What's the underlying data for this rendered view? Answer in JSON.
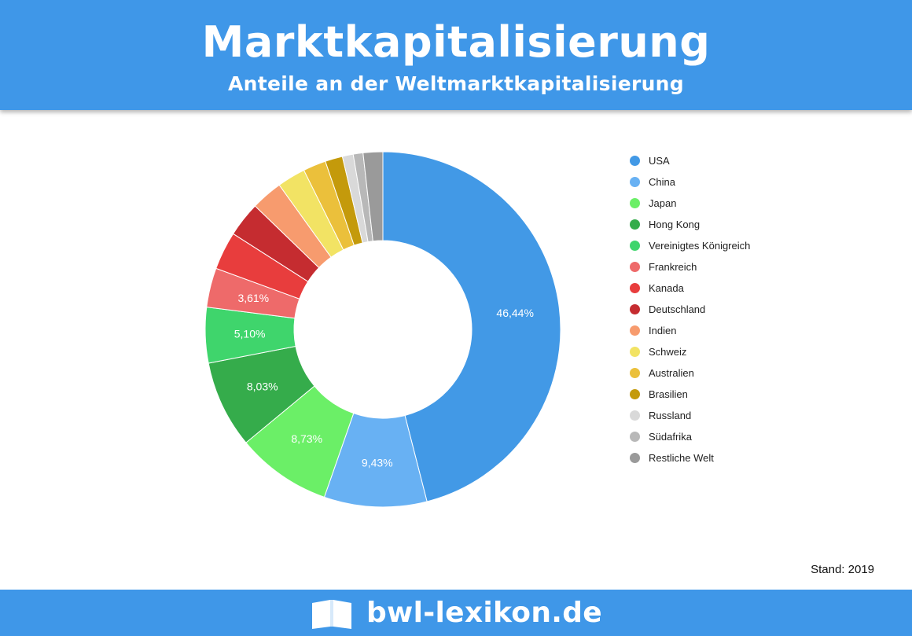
{
  "header": {
    "title": "Marktkapitalisierung",
    "subtitle": "Anteile an der Weltmarktkapitalisierung"
  },
  "chart_data": {
    "type": "pie",
    "variant": "donut",
    "direction": "clockwise from top",
    "categories": [
      "USA",
      "China",
      "Japan",
      "Hong Kong",
      "Vereinigtes Königreich",
      "Frankreich",
      "Kanada",
      "Deutschland",
      "Indien",
      "Schweiz",
      "Australien",
      "Brasilien",
      "Russland",
      "Südafrika",
      "Restliche Welt"
    ],
    "values": [
      46.44,
      9.43,
      8.73,
      8.03,
      5.1,
      3.61,
      3.5,
      3.2,
      2.9,
      2.6,
      2.1,
      1.6,
      1.0,
      0.9,
      1.8
    ],
    "labels": [
      "46,44%",
      "9,43%",
      "8,73%",
      "8,03%",
      "5,10%",
      "3,61%",
      "",
      "",
      "",
      "",
      "",
      "",
      "",
      "",
      ""
    ],
    "colors": [
      "#4299e6",
      "#68b1f3",
      "#6bef67",
      "#35ac4b",
      "#3fd56c",
      "#ee6a6a",
      "#e83d3d",
      "#c52c30",
      "#f79b6e",
      "#f2e364",
      "#ebc03b",
      "#c49a0b",
      "#d9d9d9",
      "#b8b8b8",
      "#9a9a9a"
    ],
    "legend_position": "right",
    "note": "Stand: 2019"
  },
  "footer": {
    "brand": "bwl-lexikon.de",
    "icon": "book-icon"
  }
}
